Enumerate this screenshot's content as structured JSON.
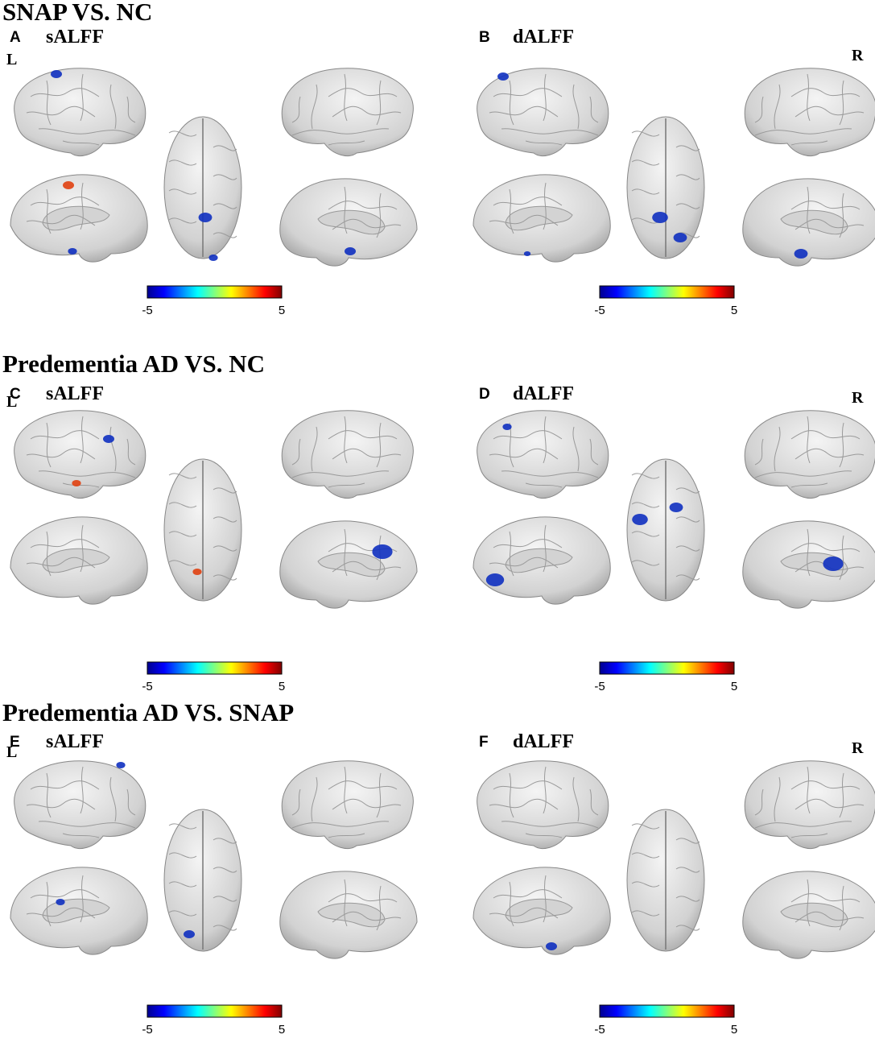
{
  "sections": [
    {
      "title": "SNAP VS. NC",
      "panels": [
        {
          "letter": "A",
          "label": "sALFF",
          "side": "L",
          "colorbar": {
            "min": -5,
            "max": 5
          }
        },
        {
          "letter": "B",
          "label": "dALFF",
          "side": "R",
          "colorbar": {
            "min": -5,
            "max": 5
          }
        }
      ]
    },
    {
      "title": "Predementia AD VS. NC",
      "panels": [
        {
          "letter": "C",
          "label": "sALFF",
          "side": "L",
          "colorbar": {
            "min": -5,
            "max": 5
          }
        },
        {
          "letter": "D",
          "label": "dALFF",
          "side": "R",
          "colorbar": {
            "min": -5,
            "max": 5
          }
        }
      ]
    },
    {
      "title": "Predementia AD VS. SNAP",
      "panels": [
        {
          "letter": "E",
          "label": "sALFF",
          "side": "L",
          "colorbar": {
            "min": -5,
            "max": 5
          }
        },
        {
          "letter": "F",
          "label": "dALFF",
          "side": "R",
          "colorbar": {
            "min": -5,
            "max": 5
          }
        }
      ]
    }
  ]
}
